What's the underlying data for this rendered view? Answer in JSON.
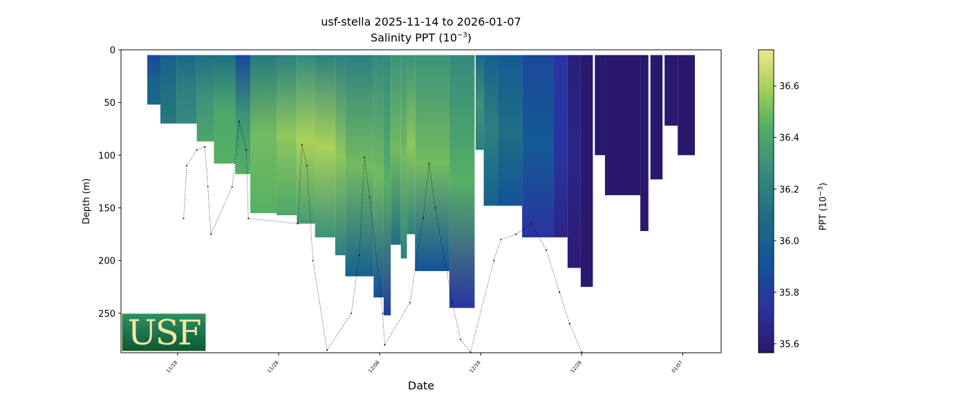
{
  "chart_data": {
    "type": "heatmap",
    "title_line1": "usf-stella 2025-11-14 to 2026-01-07",
    "title_line2_prefix": "Salinity PPT (10",
    "title_line2_sup": "−3",
    "title_line2_suffix": ")",
    "xlabel": "Date",
    "ylabel": "Depth (m)",
    "x_units": "days since 11/18",
    "xlim": [
      -5.6,
      53.8
    ],
    "ylim": [
      287.5,
      0
    ],
    "xticks": [
      {
        "value": 0,
        "label": "11/18"
      },
      {
        "value": 10,
        "label": "11/28"
      },
      {
        "value": 20,
        "label": "12/08"
      },
      {
        "value": 30,
        "label": "12/18"
      },
      {
        "value": 40,
        "label": "12/28"
      },
      {
        "value": 50,
        "label": "01/07"
      }
    ],
    "yticks": [
      0,
      50,
      100,
      150,
      200,
      250
    ],
    "colorbar": {
      "label_prefix": "PPT (10",
      "label_sup": "−3",
      "label_suffix": ")",
      "range": [
        35.565,
        36.74
      ],
      "ticks": [
        "35.6",
        "35.8",
        "36.0",
        "36.2",
        "36.4",
        "36.6"
      ],
      "colormap": "haline"
    },
    "profiles": [
      {
        "x0": -3.0,
        "x1": -1.7,
        "max_depth": 52,
        "salinity": [
          35.85,
          36.0,
          36.05
        ]
      },
      {
        "x0": -1.7,
        "x1": -0.1,
        "max_depth": 70,
        "salinity": [
          36.0,
          36.1,
          36.15
        ]
      },
      {
        "x0": -0.1,
        "x1": 1.9,
        "max_depth": 70,
        "salinity": [
          36.05,
          36.2,
          36.25
        ]
      },
      {
        "x0": 1.9,
        "x1": 3.6,
        "max_depth": 87,
        "salinity": [
          36.1,
          36.3,
          36.4
        ]
      },
      {
        "x0": 3.6,
        "x1": 5.7,
        "max_depth": 108,
        "salinity": [
          36.1,
          36.4,
          36.45
        ]
      },
      {
        "x0": 5.7,
        "x1": 7.2,
        "max_depth": 118,
        "salinity": [
          35.85,
          36.3,
          36.45
        ]
      },
      {
        "x0": 7.2,
        "x1": 9.8,
        "max_depth": 155,
        "salinity": [
          36.15,
          36.5,
          36.45
        ]
      },
      {
        "x0": 9.8,
        "x1": 11.8,
        "max_depth": 157,
        "salinity": [
          36.2,
          36.55,
          36.4
        ]
      },
      {
        "x0": 11.8,
        "x1": 13.6,
        "max_depth": 165,
        "salinity": [
          36.25,
          36.6,
          36.35
        ]
      },
      {
        "x0": 13.6,
        "x1": 15.6,
        "max_depth": 178,
        "salinity": [
          36.2,
          36.6,
          36.3
        ]
      },
      {
        "x0": 15.6,
        "x1": 16.6,
        "max_depth": 195,
        "salinity": [
          36.2,
          36.55,
          36.2
        ]
      },
      {
        "x0": 16.6,
        "x1": 19.4,
        "max_depth": 215,
        "salinity": [
          36.2,
          36.5,
          36.0
        ]
      },
      {
        "x0": 19.4,
        "x1": 20.4,
        "max_depth": 235,
        "salinity": [
          36.25,
          36.5,
          35.9
        ]
      },
      {
        "x0": 20.4,
        "x1": 21.1,
        "max_depth": 252,
        "salinity": [
          36.25,
          36.45,
          35.8
        ]
      },
      {
        "x0": 21.1,
        "x1": 22.1,
        "max_depth": 185,
        "salinity": [
          36.3,
          36.5,
          36.1
        ]
      },
      {
        "x0": 22.1,
        "x1": 22.7,
        "max_depth": 198,
        "salinity": [
          36.3,
          36.5,
          36.2
        ]
      },
      {
        "x0": 22.7,
        "x1": 23.5,
        "max_depth": 175,
        "salinity": [
          36.3,
          36.55,
          36.2
        ]
      },
      {
        "x0": 23.5,
        "x1": 26.9,
        "max_depth": 210,
        "salinity": [
          36.3,
          36.5,
          35.9
        ]
      },
      {
        "x0": 26.9,
        "x1": 29.4,
        "max_depth": 245,
        "salinity": [
          36.25,
          36.45,
          35.75
        ]
      },
      {
        "x0": 29.5,
        "x1": 30.3,
        "max_depth": 95,
        "salinity": [
          36.05,
          36.3,
          36.2
        ]
      },
      {
        "x0": 30.3,
        "x1": 31.7,
        "max_depth": 148,
        "salinity": [
          36.0,
          36.2,
          36.0
        ]
      },
      {
        "x0": 31.7,
        "x1": 34.1,
        "max_depth": 148,
        "salinity": [
          35.95,
          36.1,
          35.9
        ]
      },
      {
        "x0": 34.1,
        "x1": 37.2,
        "max_depth": 178,
        "salinity": [
          35.85,
          35.95,
          35.75
        ]
      },
      {
        "x0": 37.2,
        "x1": 38.6,
        "max_depth": 178,
        "salinity": [
          35.75,
          35.75,
          35.65
        ]
      },
      {
        "x0": 38.6,
        "x1": 39.9,
        "max_depth": 207,
        "salinity": [
          35.62,
          35.65,
          35.6
        ]
      },
      {
        "x0": 39.9,
        "x1": 41.1,
        "max_depth": 225,
        "salinity": [
          35.57,
          35.57,
          35.57
        ]
      },
      {
        "x0": 41.3,
        "x1": 42.3,
        "max_depth": 100,
        "salinity": [
          35.56,
          35.56,
          35.56
        ]
      },
      {
        "x0": 42.3,
        "x1": 45.8,
        "max_depth": 138,
        "salinity": [
          35.56,
          35.56,
          35.56
        ]
      },
      {
        "x0": 45.8,
        "x1": 46.6,
        "max_depth": 172,
        "salinity": [
          35.56,
          35.56,
          35.56
        ]
      },
      {
        "x0": 46.8,
        "x1": 48.0,
        "max_depth": 123,
        "salinity": [
          35.56,
          35.56,
          35.56
        ]
      },
      {
        "x0": 48.2,
        "x1": 49.5,
        "max_depth": 72,
        "salinity": [
          35.56,
          35.56,
          35.56
        ]
      },
      {
        "x0": 49.5,
        "x1": 51.2,
        "max_depth": 100,
        "salinity": [
          35.56,
          35.56,
          35.56
        ]
      }
    ],
    "seafloor": [
      [
        0.6,
        160
      ],
      [
        0.9,
        110
      ],
      [
        1.9,
        95
      ],
      [
        2.7,
        92
      ],
      [
        3.0,
        130
      ],
      [
        3.3,
        175
      ],
      [
        5.4,
        130
      ],
      [
        6.1,
        68
      ],
      [
        6.8,
        95
      ],
      [
        7.0,
        160
      ],
      [
        11.9,
        165
      ],
      [
        12.3,
        90
      ],
      [
        12.8,
        110
      ],
      [
        13.4,
        200
      ],
      [
        14.8,
        285
      ],
      [
        17.2,
        250
      ],
      [
        18.0,
        195
      ],
      [
        18.5,
        102
      ],
      [
        19.0,
        140
      ],
      [
        20.3,
        250
      ],
      [
        20.5,
        280
      ],
      [
        23.0,
        240
      ],
      [
        24.3,
        160
      ],
      [
        24.9,
        108
      ],
      [
        25.5,
        150
      ],
      [
        27.2,
        240
      ],
      [
        28.0,
        275
      ],
      [
        29.0,
        287
      ],
      [
        31.3,
        200
      ],
      [
        32.0,
        180
      ],
      [
        33.5,
        175
      ],
      [
        35.0,
        165
      ],
      [
        36.5,
        190
      ],
      [
        37.8,
        230
      ],
      [
        38.8,
        260
      ],
      [
        40.0,
        287
      ]
    ],
    "logo": "USF"
  }
}
